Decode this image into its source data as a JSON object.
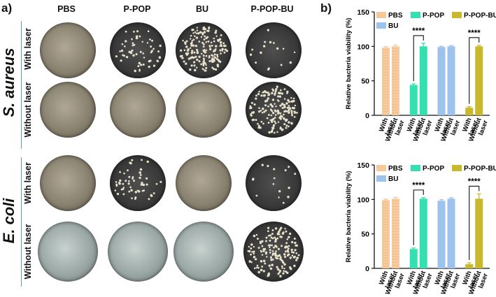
{
  "panel_a": {
    "letter": "a)",
    "columns": [
      "PBS",
      "P-POP",
      "BU",
      "P-POP-BU"
    ],
    "organisms": [
      "S. aureus",
      "E. coli"
    ],
    "conditions": [
      "With laser",
      "Without laser"
    ],
    "dishes": [
      {
        "organism": "S. aureus",
        "condition": "With laser",
        "group": "PBS",
        "density": "lawn"
      },
      {
        "organism": "S. aureus",
        "condition": "With laser",
        "group": "P-POP",
        "density": "sparse"
      },
      {
        "organism": "S. aureus",
        "condition": "With laser",
        "group": "BU",
        "density": "dense"
      },
      {
        "organism": "S. aureus",
        "condition": "With laser",
        "group": "P-POP-BU",
        "density": "very sparse"
      },
      {
        "organism": "S. aureus",
        "condition": "Without laser",
        "group": "PBS",
        "density": "lawn"
      },
      {
        "organism": "S. aureus",
        "condition": "Without laser",
        "group": "P-POP",
        "density": "lawn"
      },
      {
        "organism": "S. aureus",
        "condition": "Without laser",
        "group": "BU",
        "density": "lawn"
      },
      {
        "organism": "S. aureus",
        "condition": "Without laser",
        "group": "P-POP-BU",
        "density": "dense"
      },
      {
        "organism": "E. coli",
        "condition": "With laser",
        "group": "PBS",
        "density": "lawn"
      },
      {
        "organism": "E. coli",
        "condition": "With laser",
        "group": "P-POP",
        "density": "sparse"
      },
      {
        "organism": "E. coli",
        "condition": "With laser",
        "group": "BU",
        "density": "lawn"
      },
      {
        "organism": "E. coli",
        "condition": "With laser",
        "group": "P-POP-BU",
        "density": "very sparse"
      },
      {
        "organism": "E. coli",
        "condition": "Without laser",
        "group": "PBS",
        "density": "lawn"
      },
      {
        "organism": "E. coli",
        "condition": "Without laser",
        "group": "P-POP",
        "density": "lawn"
      },
      {
        "organism": "E. coli",
        "condition": "Without laser",
        "group": "BU",
        "density": "lawn"
      },
      {
        "organism": "E. coli",
        "condition": "Without laser",
        "group": "P-POP-BU",
        "density": "dense"
      }
    ]
  },
  "panel_b": {
    "letter": "b)"
  },
  "colors": {
    "PBS": "#f5c99a",
    "P-POP": "#34e0b0",
    "BU": "#9dc3ec",
    "P-POP-BU": "#c9b82c",
    "divider": "#5a9bd5"
  },
  "chart_data": [
    {
      "type": "bar",
      "organism": "S. aureus",
      "ylabel": "Relative bacteria viability (%)",
      "ylim": [
        0,
        150
      ],
      "yticks": [
        0,
        50,
        100,
        150
      ],
      "categories": [
        "With laser",
        "Without laser",
        "With laser",
        "Without laser",
        "With laser",
        "Without laser",
        "With laser",
        "Without laser"
      ],
      "groups": [
        "PBS",
        "PBS",
        "P-POP",
        "P-POP",
        "BU",
        "BU",
        "P-POP-BU",
        "P-POP-BU"
      ],
      "values": [
        98,
        100,
        44,
        100,
        99,
        100,
        11,
        100
      ],
      "errors": [
        1.5,
        2,
        1.5,
        4.5,
        1,
        1,
        1.5,
        1.5
      ],
      "legend": [
        "PBS",
        "P-POP",
        "P-POP-BU",
        "BU"
      ],
      "legend_position": "top",
      "annotations": [
        {
          "text": "****",
          "from": 2,
          "to": 3
        },
        {
          "text": "****",
          "from": 6,
          "to": 7
        }
      ]
    },
    {
      "type": "bar",
      "organism": "E. coli",
      "ylabel": "Relative bacteria viability (%)",
      "ylim": [
        0,
        150
      ],
      "yticks": [
        0,
        50,
        100,
        150
      ],
      "categories": [
        "With laser",
        "Without laser",
        "With laser",
        "Without laser",
        "With laser",
        "Without laser",
        "With laser",
        "Without laser"
      ],
      "groups": [
        "PBS",
        "PBS",
        "P-POP",
        "P-POP",
        "BU",
        "BU",
        "P-POP-BU",
        "P-POP-BU"
      ],
      "values": [
        99,
        101,
        28,
        101,
        98,
        101,
        6,
        101
      ],
      "errors": [
        1.5,
        2,
        1.5,
        1.5,
        1.5,
        1.5,
        2,
        7
      ],
      "legend": [
        "PBS",
        "P-POP",
        "P-POP-BU",
        "BU"
      ],
      "legend_position": "top",
      "annotations": [
        {
          "text": "****",
          "from": 2,
          "to": 3
        },
        {
          "text": "****",
          "from": 6,
          "to": 7
        }
      ]
    }
  ]
}
